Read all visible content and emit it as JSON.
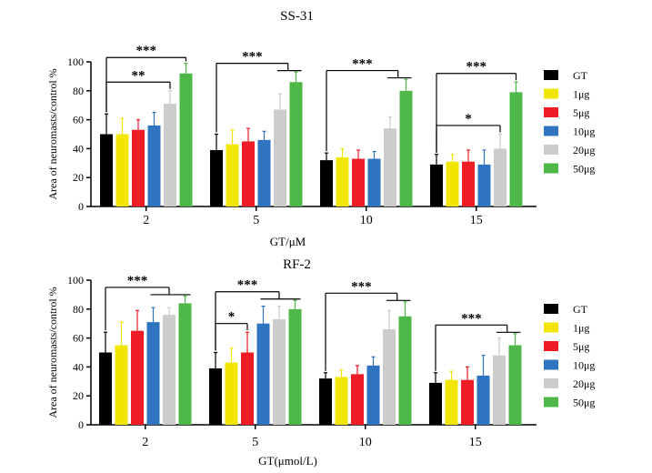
{
  "colors": {
    "GT": "#000000",
    "1μg": "#f2e600",
    "5μg": "#ee1c25",
    "10μg": "#2e74c0",
    "20μg": "#cccccc",
    "50μg": "#4db848"
  },
  "chart_data": [
    {
      "type": "bar",
      "title": "SS-31",
      "xlabel": "GT/μM",
      "ylabel": "Area of neuromasts/control %",
      "ylim": [
        0,
        100
      ],
      "yticks": [
        "0",
        "20",
        "40",
        "60",
        "80",
        "100"
      ],
      "categories": [
        "2",
        "5",
        "10",
        "15"
      ],
      "series": [
        {
          "name": "GT",
          "values": [
            50,
            39,
            32,
            29
          ],
          "errors": [
            14,
            11,
            5,
            7
          ]
        },
        {
          "name": "1μg",
          "values": [
            50,
            43,
            34,
            31
          ],
          "errors": [
            11,
            10,
            6,
            5
          ]
        },
        {
          "name": "5μg",
          "values": [
            53,
            45,
            33,
            31
          ],
          "errors": [
            7,
            9,
            6,
            8
          ]
        },
        {
          "name": "10μg",
          "values": [
            56,
            46,
            33,
            29
          ],
          "errors": [
            9,
            6,
            5,
            10
          ]
        },
        {
          "name": "20μg",
          "values": [
            71,
            67,
            54,
            40
          ],
          "errors": [
            9,
            11,
            8,
            10
          ]
        },
        {
          "name": "50μg",
          "values": [
            92,
            86,
            80,
            79
          ],
          "errors": [
            7,
            7,
            8,
            7
          ]
        }
      ],
      "annotations": [
        {
          "text": "***",
          "group": "2",
          "from": "GT",
          "to": "50μg"
        },
        {
          "text": "**",
          "group": "2",
          "from": "GT",
          "to": "20μg"
        },
        {
          "text": "***",
          "group": "5",
          "from": "GT",
          "to": "20μg-50μg"
        },
        {
          "text": "***",
          "group": "10",
          "from": "GT",
          "to": "20μg-50μg"
        },
        {
          "text": "***",
          "group": "15",
          "from": "GT",
          "to": "50μg"
        },
        {
          "text": "*",
          "group": "15",
          "from": "GT",
          "to": "20μg"
        }
      ]
    },
    {
      "type": "bar",
      "title": "RF-2",
      "xlabel": "GT(μmol/L)",
      "ylabel": "Area of neuromasts/control %",
      "ylim": [
        0,
        100
      ],
      "yticks": [
        "0",
        "20",
        "40",
        "60",
        "80",
        "100"
      ],
      "categories": [
        "2",
        "5",
        "10",
        "15"
      ],
      "series": [
        {
          "name": "GT",
          "values": [
            50,
            39,
            32,
            29
          ],
          "errors": [
            14,
            11,
            4,
            7
          ]
        },
        {
          "name": "1μg",
          "values": [
            55,
            43,
            33,
            31
          ],
          "errors": [
            16,
            10,
            5,
            6
          ]
        },
        {
          "name": "5μg",
          "values": [
            65,
            50,
            35,
            31
          ],
          "errors": [
            14,
            14,
            6,
            9
          ]
        },
        {
          "name": "10μg",
          "values": [
            71,
            70,
            41,
            34
          ],
          "errors": [
            10,
            12,
            6,
            14
          ]
        },
        {
          "name": "20μg",
          "values": [
            76,
            73,
            66,
            48
          ],
          "errors": [
            5,
            9,
            13,
            12
          ]
        },
        {
          "name": "50μg",
          "values": [
            84,
            80,
            75,
            55
          ],
          "errors": [
            5,
            6,
            10,
            8
          ]
        }
      ],
      "annotations": [
        {
          "text": "***",
          "group": "2",
          "from": "GT",
          "to": "10μg-50μg"
        },
        {
          "text": "***",
          "group": "5",
          "from": "GT",
          "to": "10μg-50μg"
        },
        {
          "text": "*",
          "group": "5",
          "from": "GT",
          "to": "5μg"
        },
        {
          "text": "***",
          "group": "10",
          "from": "GT",
          "to": "20μg-50μg"
        },
        {
          "text": "***",
          "group": "15",
          "from": "GT",
          "to": "20μg-50μg"
        }
      ]
    }
  ]
}
